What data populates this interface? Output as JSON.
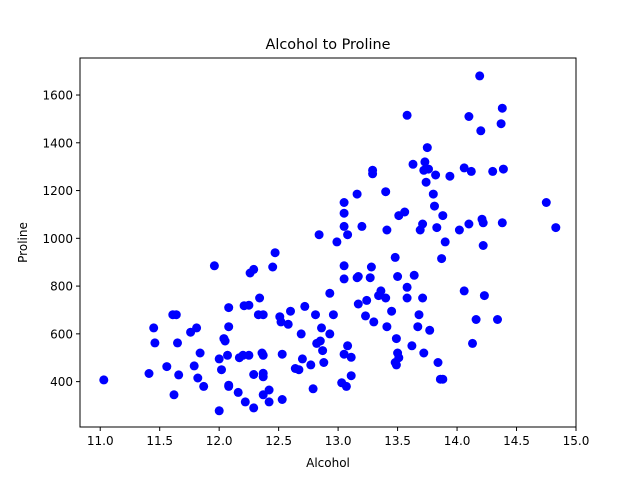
{
  "chart_data": {
    "type": "scatter",
    "title": "Alcohol to Proline",
    "xlabel": "Alcohol",
    "ylabel": "Proline",
    "xlim": [
      10.83,
      15.0
    ],
    "ylim": [
      210,
      1755
    ],
    "x_ticks": [
      "11.0",
      "11.5",
      "12.0",
      "12.5",
      "13.0",
      "13.5",
      "14.0",
      "14.5",
      "15.0"
    ],
    "y_ticks": [
      "400",
      "600",
      "800",
      "1000",
      "1200",
      "1400",
      "1600"
    ],
    "grid": false,
    "marker_color": "#0000ff",
    "series": [
      {
        "points": [
          [
            11.03,
            407
          ],
          [
            11.41,
            434
          ],
          [
            11.45,
            625
          ],
          [
            11.46,
            562
          ],
          [
            11.56,
            463
          ],
          [
            11.61,
            680
          ],
          [
            11.62,
            345
          ],
          [
            11.64,
            680
          ],
          [
            11.65,
            562
          ],
          [
            11.66,
            428
          ],
          [
            11.76,
            607
          ],
          [
            11.79,
            466
          ],
          [
            11.81,
            625
          ],
          [
            11.82,
            415
          ],
          [
            11.84,
            520
          ],
          [
            11.87,
            380
          ],
          [
            11.96,
            885
          ],
          [
            12.0,
            495
          ],
          [
            12.0,
            278
          ],
          [
            12.02,
            450
          ],
          [
            12.04,
            580
          ],
          [
            12.05,
            570
          ],
          [
            12.07,
            510
          ],
          [
            12.08,
            380
          ],
          [
            12.08,
            630
          ],
          [
            12.08,
            710
          ],
          [
            12.08,
            385
          ],
          [
            12.16,
            355
          ],
          [
            12.17,
            500
          ],
          [
            12.2,
            510
          ],
          [
            12.21,
            718
          ],
          [
            12.22,
            315
          ],
          [
            12.25,
            720
          ],
          [
            12.25,
            510
          ],
          [
            12.26,
            855
          ],
          [
            12.29,
            870
          ],
          [
            12.29,
            430
          ],
          [
            12.29,
            290
          ],
          [
            12.33,
            680
          ],
          [
            12.34,
            750
          ],
          [
            12.36,
            520
          ],
          [
            12.37,
            435
          ],
          [
            12.37,
            420
          ],
          [
            12.37,
            510
          ],
          [
            12.37,
            680
          ],
          [
            12.37,
            345
          ],
          [
            12.42,
            365
          ],
          [
            12.42,
            315
          ],
          [
            12.45,
            880
          ],
          [
            12.47,
            940
          ],
          [
            12.51,
            672
          ],
          [
            12.52,
            650
          ],
          [
            12.53,
            515
          ],
          [
            12.53,
            325
          ],
          [
            12.58,
            640
          ],
          [
            12.6,
            695
          ],
          [
            12.64,
            455
          ],
          [
            12.67,
            450
          ],
          [
            12.69,
            600
          ],
          [
            12.7,
            495
          ],
          [
            12.72,
            715
          ],
          [
            12.77,
            470
          ],
          [
            12.79,
            370
          ],
          [
            12.81,
            680
          ],
          [
            12.82,
            560
          ],
          [
            12.84,
            1015
          ],
          [
            12.85,
            570
          ],
          [
            12.86,
            625
          ],
          [
            12.87,
            530
          ],
          [
            12.88,
            480
          ],
          [
            12.93,
            770
          ],
          [
            12.93,
            600
          ],
          [
            12.96,
            680
          ],
          [
            12.99,
            985
          ],
          [
            13.03,
            395
          ],
          [
            13.05,
            1050
          ],
          [
            13.05,
            885
          ],
          [
            13.05,
            515
          ],
          [
            13.05,
            830
          ],
          [
            13.05,
            1150
          ],
          [
            13.05,
            1105
          ],
          [
            13.07,
            380
          ],
          [
            13.08,
            1015
          ],
          [
            13.08,
            550
          ],
          [
            13.11,
            502
          ],
          [
            13.11,
            425
          ],
          [
            13.16,
            835
          ],
          [
            13.16,
            1185
          ],
          [
            13.17,
            840
          ],
          [
            13.17,
            725
          ],
          [
            13.2,
            1050
          ],
          [
            13.23,
            675
          ],
          [
            13.24,
            740
          ],
          [
            13.27,
            835
          ],
          [
            13.28,
            880
          ],
          [
            13.29,
            1270
          ],
          [
            13.29,
            1285
          ],
          [
            13.3,
            650
          ],
          [
            13.34,
            760
          ],
          [
            13.36,
            780
          ],
          [
            13.4,
            1195
          ],
          [
            13.4,
            750
          ],
          [
            13.41,
            1035
          ],
          [
            13.41,
            630
          ],
          [
            13.45,
            695
          ],
          [
            13.48,
            920
          ],
          [
            13.48,
            480
          ],
          [
            13.49,
            580
          ],
          [
            13.49,
            470
          ],
          [
            13.5,
            840
          ],
          [
            13.5,
            520
          ],
          [
            13.51,
            1095
          ],
          [
            13.51,
            500
          ],
          [
            13.56,
            1110
          ],
          [
            13.58,
            1515
          ],
          [
            13.58,
            795
          ],
          [
            13.58,
            750
          ],
          [
            13.62,
            550
          ],
          [
            13.63,
            1310
          ],
          [
            13.64,
            845
          ],
          [
            13.67,
            630
          ],
          [
            13.68,
            680
          ],
          [
            13.69,
            1035
          ],
          [
            13.71,
            750
          ],
          [
            13.71,
            1060
          ],
          [
            13.72,
            1285
          ],
          [
            13.72,
            520
          ],
          [
            13.73,
            1320
          ],
          [
            13.74,
            1235
          ],
          [
            13.75,
            1380
          ],
          [
            13.76,
            1290
          ],
          [
            13.77,
            615
          ],
          [
            13.8,
            1185
          ],
          [
            13.81,
            1135
          ],
          [
            13.82,
            1265
          ],
          [
            13.83,
            1045
          ],
          [
            13.84,
            480
          ],
          [
            13.86,
            410
          ],
          [
            13.87,
            915
          ],
          [
            13.88,
            1095
          ],
          [
            13.88,
            410
          ],
          [
            13.9,
            985
          ],
          [
            13.94,
            1260
          ],
          [
            14.02,
            1035
          ],
          [
            14.06,
            1295
          ],
          [
            14.06,
            780
          ],
          [
            14.1,
            1510
          ],
          [
            14.1,
            1060
          ],
          [
            14.12,
            1280
          ],
          [
            14.13,
            560
          ],
          [
            14.16,
            660
          ],
          [
            14.19,
            1680
          ],
          [
            14.2,
            1450
          ],
          [
            14.21,
            1080
          ],
          [
            14.22,
            1065
          ],
          [
            14.22,
            970
          ],
          [
            14.23,
            760
          ],
          [
            14.3,
            1280
          ],
          [
            14.34,
            660
          ],
          [
            14.37,
            1480
          ],
          [
            14.38,
            1545
          ],
          [
            14.38,
            1065
          ],
          [
            14.39,
            1290
          ],
          [
            14.75,
            1150
          ],
          [
            14.83,
            1045
          ]
        ]
      }
    ]
  }
}
